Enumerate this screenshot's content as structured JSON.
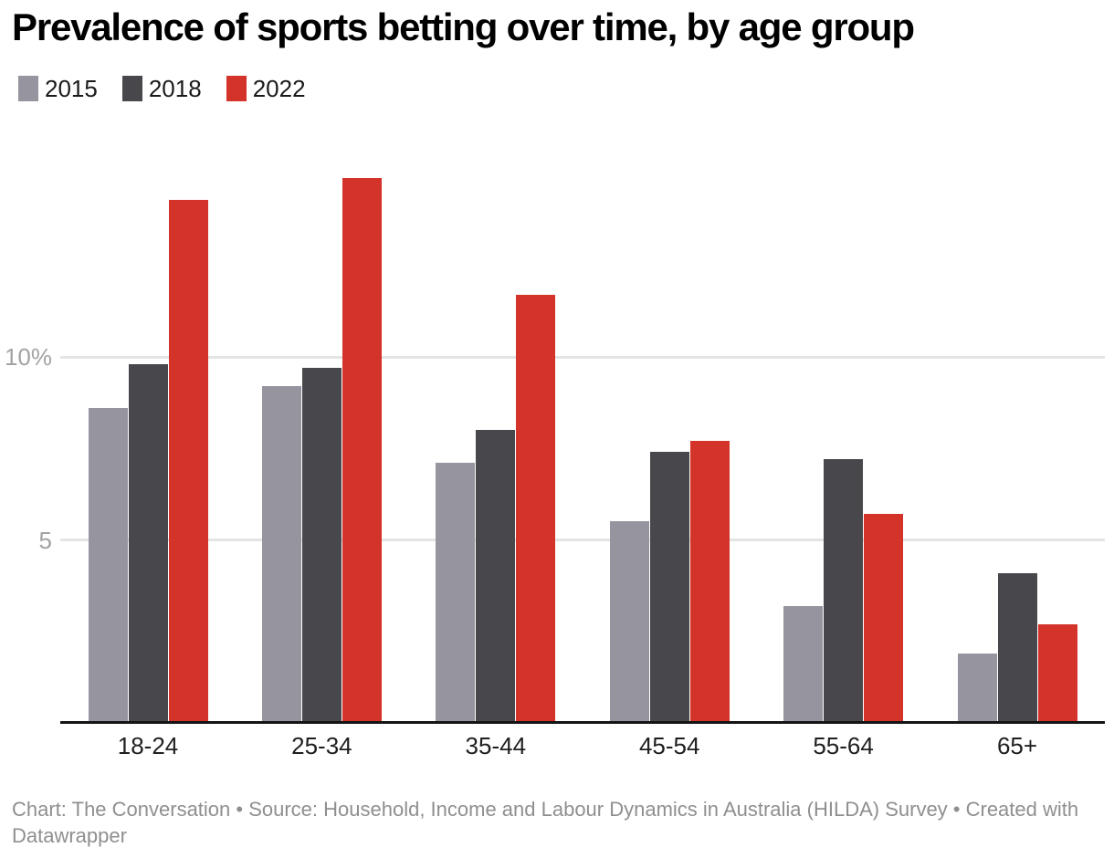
{
  "chart_data": {
    "type": "bar",
    "bar_layout": "grouped",
    "title": "Prevalence of sports betting over time, by age group",
    "categories": [
      "18-24",
      "25-34",
      "35-44",
      "45-54",
      "55-64",
      "65+"
    ],
    "series": [
      {
        "name": "2015",
        "color": "#96949f",
        "values": [
          8.6,
          9.2,
          7.1,
          5.5,
          3.2,
          1.9
        ]
      },
      {
        "name": "2018",
        "color": "#48474b",
        "values": [
          9.8,
          9.7,
          8.0,
          7.4,
          7.2,
          4.1
        ]
      },
      {
        "name": "2022",
        "color": "#d33328",
        "values": [
          14.3,
          14.9,
          11.7,
          7.7,
          5.7,
          2.7
        ]
      }
    ],
    "unit": "%",
    "xlabel": "",
    "ylabel": "",
    "ylim": [
      0,
      15.5
    ],
    "y_ticks": [
      {
        "value": 5,
        "label": "5"
      },
      {
        "value": 10,
        "label": "10%"
      }
    ],
    "grid": "horizontal",
    "legend_position": "top-left",
    "axis_line_color": "#141414",
    "gridline_color": "#e4e4e4"
  },
  "footer": {
    "text": "Chart: The Conversation • Source: Household, Income and Labour Dynamics in Australia (HILDA) Survey • Created with Datawrapper"
  }
}
